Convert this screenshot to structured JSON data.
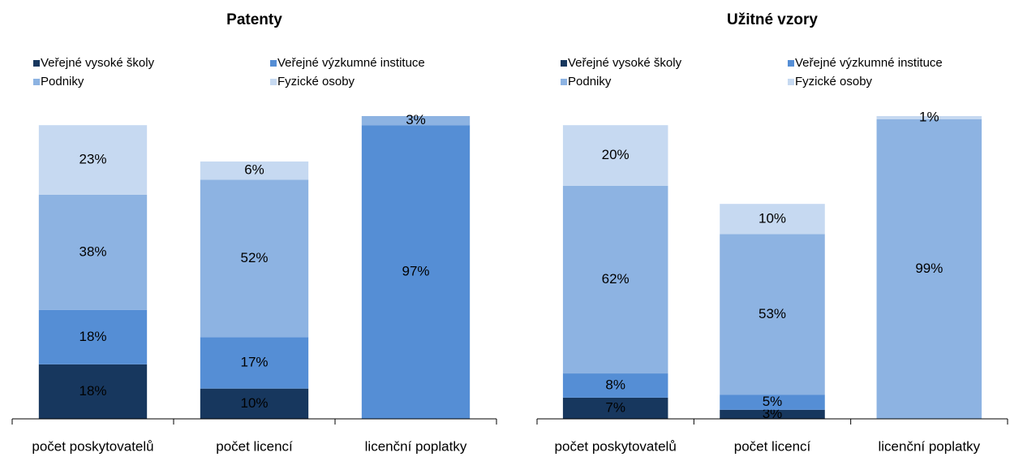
{
  "chart_data": [
    {
      "type": "bar",
      "stacked": true,
      "title": "Patenty",
      "categories": [
        "počet poskytovatelů",
        "počet licencí",
        "licenční poplatky"
      ],
      "ylim": [
        0,
        100
      ],
      "series": [
        {
          "name": "Veřejné vysoké školy",
          "color": "#17375e",
          "values": [
            18,
            10,
            0
          ],
          "value_labels": [
            "18%",
            "10%",
            null
          ]
        },
        {
          "name": "Veřejné výzkumné instituce",
          "color": "#558ed5",
          "values": [
            18,
            17,
            97
          ],
          "value_labels": [
            "18%",
            "17%",
            "97%"
          ]
        },
        {
          "name": "Podniky",
          "color": "#8db3e2",
          "values": [
            38,
            52,
            3
          ],
          "value_labels": [
            "38%",
            "52%",
            "3%"
          ]
        },
        {
          "name": "Fyzické osoby",
          "color": "#c6d9f1",
          "values": [
            23,
            6,
            0
          ],
          "value_labels": [
            "23%",
            "6%",
            null
          ]
        }
      ]
    },
    {
      "type": "bar",
      "stacked": true,
      "title": "Užitné vzory",
      "categories": [
        "počet poskytovatelů",
        "počet licencí",
        "licenční poplatky"
      ],
      "ylim": [
        0,
        100
      ],
      "series": [
        {
          "name": "Veřejné vysoké školy",
          "color": "#17375e",
          "values": [
            7,
            3,
            0
          ],
          "value_labels": [
            "7%",
            "3%",
            null
          ]
        },
        {
          "name": "Veřejné výzkumné instituce",
          "color": "#558ed5",
          "values": [
            8,
            5,
            0
          ],
          "value_labels": [
            "8%",
            "5%",
            null
          ]
        },
        {
          "name": "Podniky",
          "color": "#8db3e2",
          "values": [
            62,
            53,
            99
          ],
          "value_labels": [
            "62%",
            "53%",
            "99%"
          ]
        },
        {
          "name": "Fyzické osoby",
          "color": "#c6d9f1",
          "values": [
            20,
            10,
            1
          ],
          "value_labels": [
            "20%",
            "10%",
            "1%"
          ]
        }
      ]
    }
  ]
}
